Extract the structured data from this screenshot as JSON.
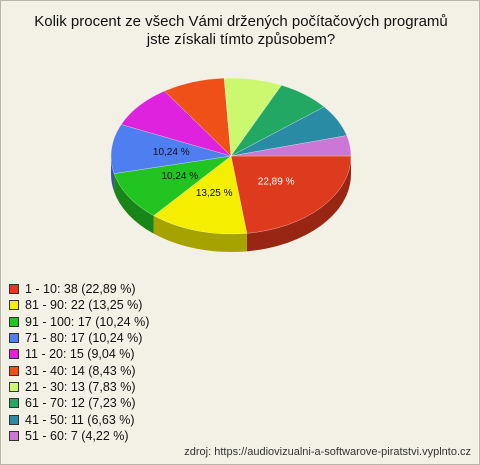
{
  "chart_data": {
    "type": "pie",
    "title": "Kolik procent ze všech Vámi držených počítačových programů jste získali tímto způsobem?",
    "categories": [
      "1 - 10: 38 (22,89 %)",
      "81 - 90: 22 (13,25 %)",
      "91 - 100: 17 (10,24 %)",
      "71 - 80: 17 (10,24 %)",
      "11 - 20: 15 (9,04 %)",
      "31 - 40: 14 (8,43 %)",
      "21 - 30: 13 (7,83 %)",
      "61 - 70: 12 (7,23 %)",
      "41 - 50: 11 (6,63 %)",
      "51 - 60: 7 (4,22 %)"
    ],
    "values": [
      22.89,
      13.25,
      10.24,
      10.24,
      9.04,
      8.43,
      7.83,
      7.23,
      6.63,
      4.22
    ],
    "value_labels": [
      "22,89 %",
      "13,25 %",
      "10,24 %",
      "10,24 %",
      null,
      null,
      null,
      null,
      null,
      null
    ],
    "colors": [
      "#de3a1e",
      "#f4ee00",
      "#22c422",
      "#4f7ef0",
      "#de22de",
      "#ee5018",
      "#ccf870",
      "#22a862",
      "#2a8ca4",
      "#cc76d6"
    ],
    "source": "zdroj: https://audiovizualni-a-softwarove-piratstvi.vyplnto.cz"
  }
}
